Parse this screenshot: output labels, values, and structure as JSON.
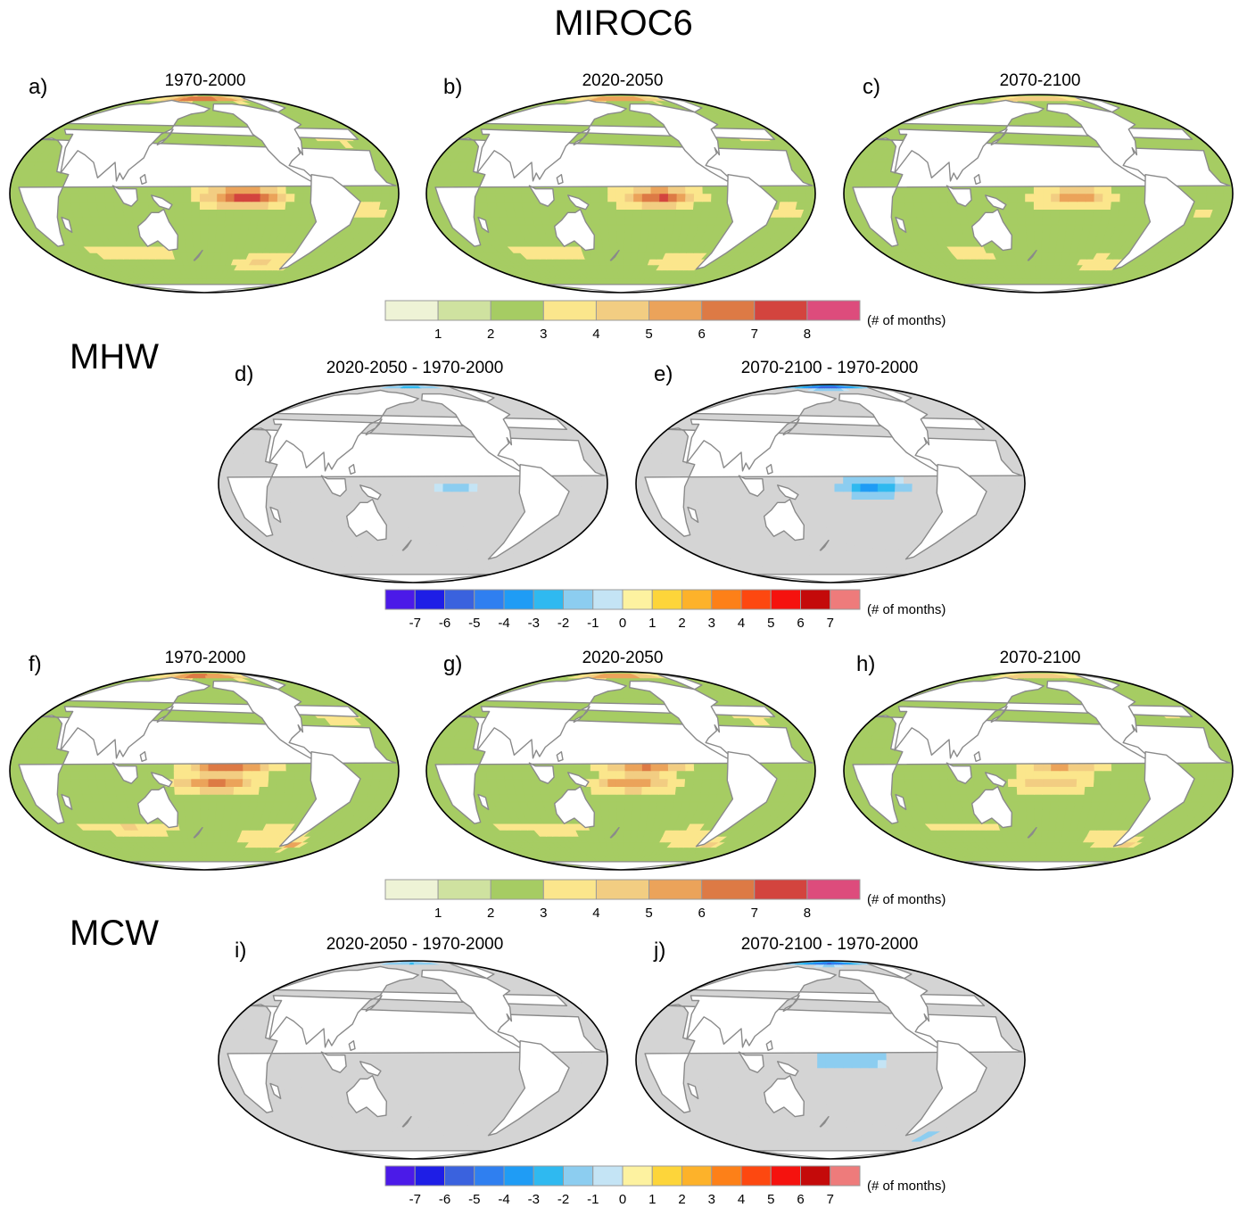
{
  "figure": {
    "title": "MIROC6",
    "sections": [
      {
        "label": "MHW"
      },
      {
        "label": "MCW"
      }
    ]
  },
  "panels": [
    {
      "letter": "a)",
      "period": "1970-2000",
      "kind": "clim",
      "ttype": "mhw",
      "intensity": 1.0
    },
    {
      "letter": "b)",
      "period": "2020-2050",
      "kind": "clim",
      "ttype": "mhw",
      "intensity": 0.85
    },
    {
      "letter": "c)",
      "period": "2070-2100",
      "kind": "clim",
      "ttype": "mhw",
      "intensity": 0.55
    },
    {
      "letter": "d)",
      "period": "2020-2050 - 1970-2000",
      "kind": "diff",
      "ttype": "mhw",
      "intensity": 0.4
    },
    {
      "letter": "e)",
      "period": "2070-2100 - 1970-2000",
      "kind": "diff",
      "ttype": "mhw",
      "intensity": 1.0
    },
    {
      "letter": "f)",
      "period": "1970-2000",
      "kind": "clim",
      "ttype": "mcw",
      "intensity": 1.0
    },
    {
      "letter": "g)",
      "period": "2020-2050",
      "kind": "clim",
      "ttype": "mcw",
      "intensity": 0.85
    },
    {
      "letter": "h)",
      "period": "2070-2100",
      "kind": "clim",
      "ttype": "mcw",
      "intensity": 0.6
    },
    {
      "letter": "i)",
      "period": "2020-2050 - 1970-2000",
      "kind": "diff",
      "ttype": "mcw",
      "intensity": 0.4
    },
    {
      "letter": "j)",
      "period": "2070-2100 - 1970-2000",
      "kind": "diff",
      "ttype": "mcw",
      "intensity": 1.0
    }
  ],
  "colorbars": {
    "climatology": {
      "unit": "(# of months)",
      "ticks": [
        "1",
        "2",
        "3",
        "4",
        "5",
        "6",
        "7",
        "8"
      ],
      "colors": [
        "#eef3d6",
        "#cfe2a0",
        "#a6cc63",
        "#fbe68c",
        "#f2cd82",
        "#eba35a",
        "#dd7a45",
        "#d3443e",
        "#dd4c7c"
      ]
    },
    "difference": {
      "unit": "(# of months)",
      "ticks": [
        "-7",
        "-6",
        "-5",
        "-4",
        "-3",
        "-2",
        "-1",
        "0",
        "1",
        "2",
        "3",
        "4",
        "5",
        "6",
        "7"
      ],
      "colors": [
        "#4b1ae8",
        "#1e1ee6",
        "#3a62de",
        "#2f7ff0",
        "#1f9cf5",
        "#2fb9f0",
        "#8ccdf0",
        "#c4e4f5",
        "#fdf2a0",
        "#fdd53a",
        "#fdb22a",
        "#fd8018",
        "#fd4810",
        "#f5120e",
        "#c40a0a",
        "#ee7b7b"
      ]
    }
  },
  "map_colors": {
    "ocean_diff": "#d4d4d4",
    "land": "#ffffff",
    "coast": "#8a8a8a"
  }
}
